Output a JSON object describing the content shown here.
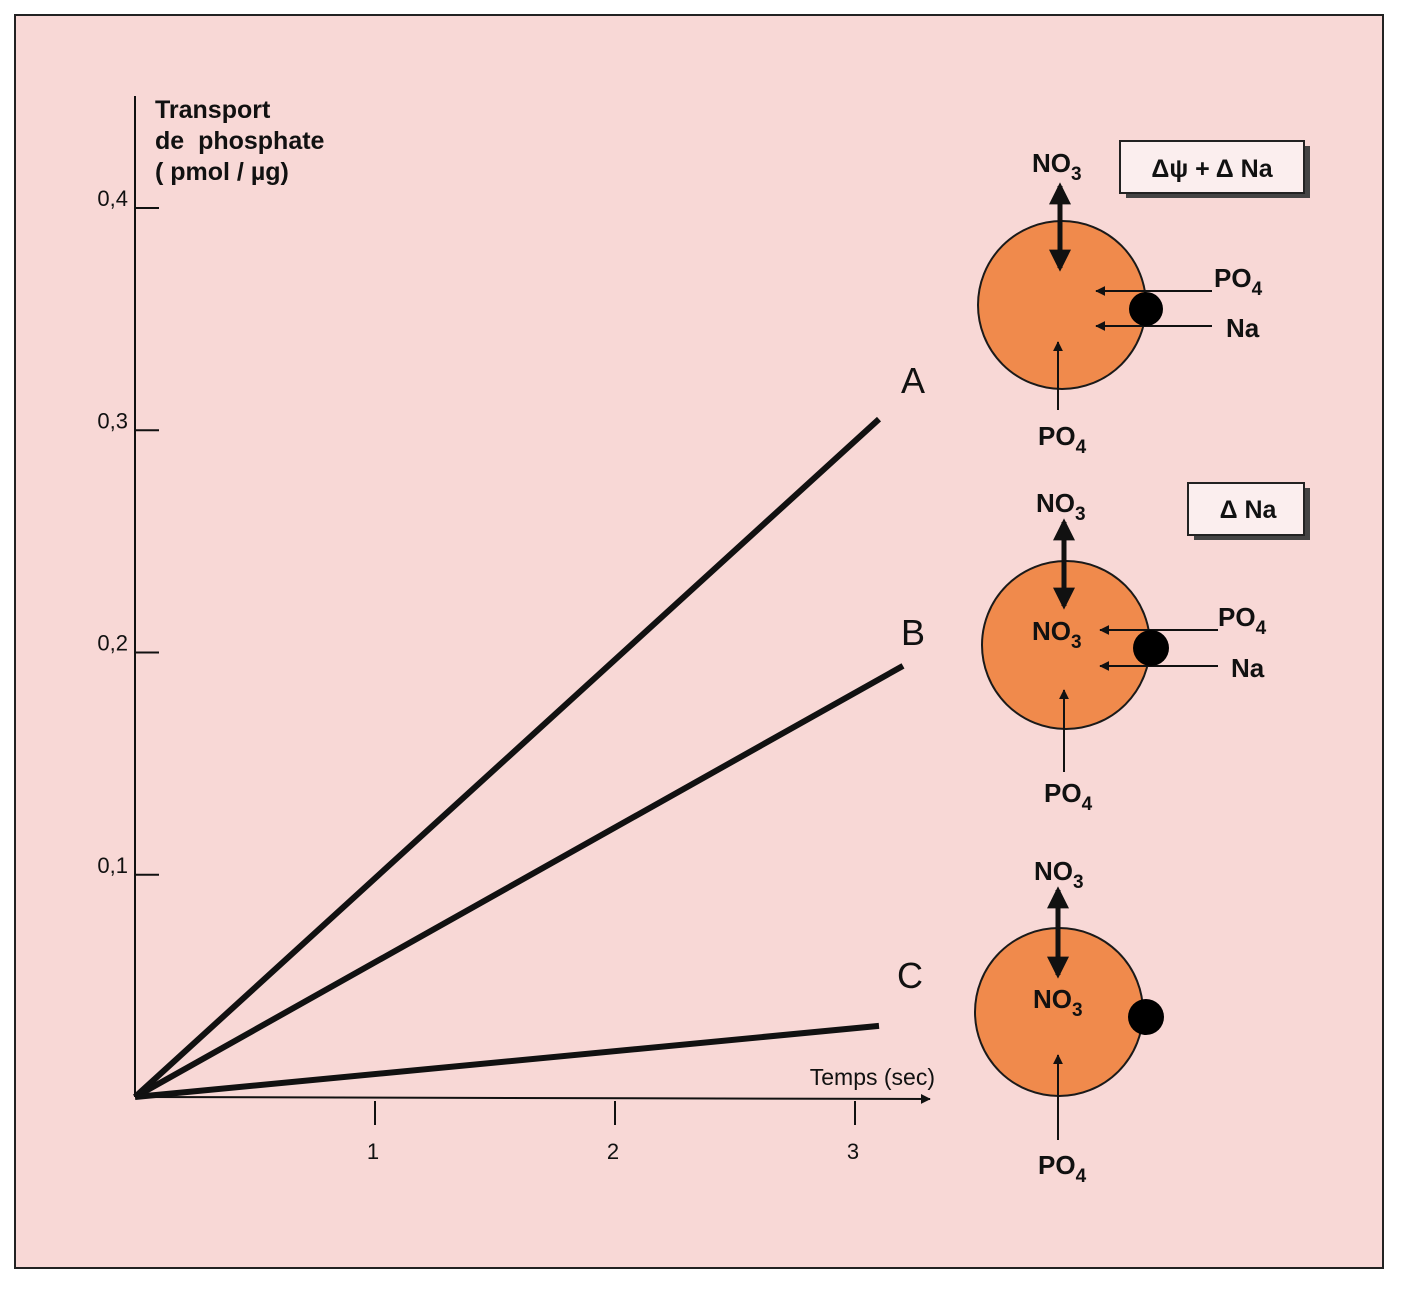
{
  "chart_data": {
    "type": "line",
    "ylabel_lines": [
      "Transport",
      "de  phosphate",
      "( pmol / µg)"
    ],
    "xlabel": "Temps (sec)",
    "xlim": [
      0,
      3.2
    ],
    "ylim": [
      0,
      0.4
    ],
    "x_ticks": [
      1,
      2,
      3
    ],
    "x_tick_labels": [
      "1",
      "2",
      "3"
    ],
    "y_ticks": [
      0.1,
      0.2,
      0.3,
      0.4
    ],
    "y_tick_labels": [
      "0,1",
      "0,2",
      "0,3",
      "0,4"
    ],
    "series": [
      {
        "name": "A",
        "x": [
          0,
          3.1
        ],
        "y": [
          0,
          0.305
        ]
      },
      {
        "name": "B",
        "x": [
          0,
          3.2
        ],
        "y": [
          0,
          0.194
        ]
      },
      {
        "name": "C",
        "x": [
          0,
          3.1
        ],
        "y": [
          0,
          0.032
        ]
      }
    ],
    "grid": false,
    "line_color": "#111111"
  },
  "diagram": {
    "cell_color": "#f08a4c",
    "cell_edge_color": "#1a1a1a",
    "transporter_color": "#000000",
    "cells": [
      {
        "label": "A",
        "condition": "Δψ + Δ Na",
        "top_ion": {
          "base": "NO",
          "sub": "3"
        },
        "inside_ion": {
          "base": "",
          "sub": ""
        },
        "side_ions": [
          {
            "base": "PO",
            "sub": "4"
          },
          {
            "base": "Na",
            "sub": ""
          }
        ],
        "bottom_ion": {
          "base": "PO",
          "sub": "4"
        }
      },
      {
        "label": "B",
        "condition": "Δ Na",
        "top_ion": {
          "base": "NO",
          "sub": "3"
        },
        "inside_ion": {
          "base": "NO",
          "sub": "3"
        },
        "side_ions": [
          {
            "base": "PO",
            "sub": "4"
          },
          {
            "base": "Na",
            "sub": ""
          }
        ],
        "bottom_ion": {
          "base": "PO",
          "sub": "4"
        }
      },
      {
        "label": "C",
        "condition": "",
        "top_ion": {
          "base": "NO",
          "sub": "3"
        },
        "inside_ion": {
          "base": "NO",
          "sub": "3"
        },
        "side_ions": [],
        "bottom_ion": {
          "base": "PO",
          "sub": "4"
        }
      }
    ]
  }
}
